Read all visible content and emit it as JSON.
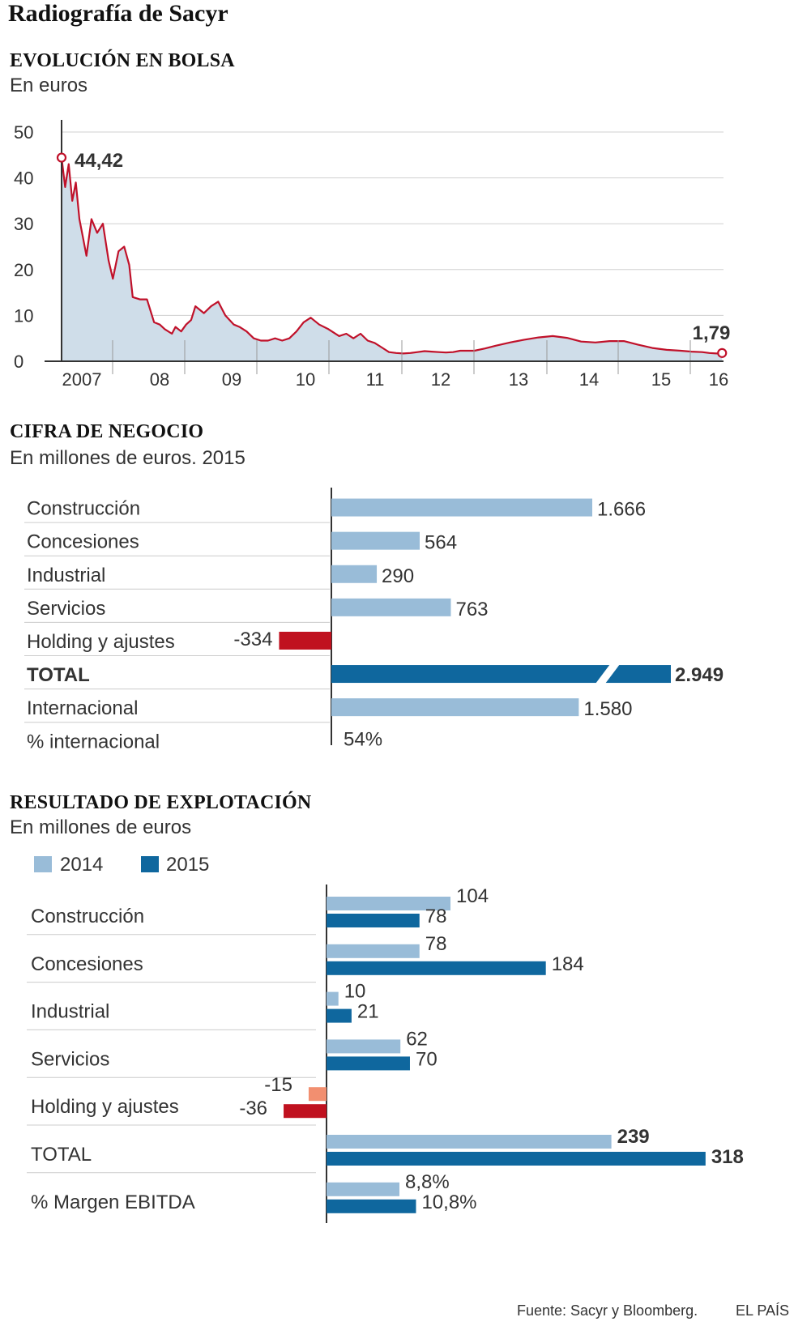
{
  "title": "Radiografía de Sacyr",
  "colors": {
    "area": "#cfdde9",
    "line": "#c0112a",
    "light": "#99bcd8",
    "dark": "#0f679e",
    "red": "#c0111f",
    "salmon": "#f28f70",
    "grid": "#d0d0d0"
  },
  "stock": {
    "title": "EVOLUCIÓN EN BOLSA",
    "subtitle": "En  euros",
    "y_ticks": [
      "50",
      "40",
      "30",
      "20",
      "10",
      "0"
    ],
    "x_ticks": [
      "2007",
      "08",
      "09",
      "10",
      "11",
      "12",
      "13",
      "14",
      "15",
      "16"
    ],
    "start_label": "44,42",
    "end_label": "1,79"
  },
  "revenue": {
    "title": "CIFRA DE NEGOCIO",
    "subtitle": "En millones de euros. 2015",
    "rows": [
      {
        "label": "Construcción",
        "value_text": "1.666"
      },
      {
        "label": "Concesiones",
        "value_text": "564"
      },
      {
        "label": "Industrial",
        "value_text": "290"
      },
      {
        "label": "Servicios",
        "value_text": "763"
      },
      {
        "label": "Holding y ajustes",
        "value_text": "-334"
      },
      {
        "label": "TOTAL",
        "value_text": "2.949"
      },
      {
        "label": "Internacional",
        "value_text": "1.580"
      },
      {
        "label": "% internacional",
        "value_text": "54%"
      }
    ]
  },
  "ebitda": {
    "title": "RESULTADO DE EXPLOTACIÓN",
    "subtitle": "En millones de euros",
    "legend": [
      "2014",
      "2015"
    ],
    "rows": [
      {
        "label": "Construcción",
        "v2014_text": "104",
        "v2015_text": "78"
      },
      {
        "label": "Concesiones",
        "v2014_text": "78",
        "v2015_text": "184"
      },
      {
        "label": "Industrial",
        "v2014_text": "10",
        "v2015_text": "21"
      },
      {
        "label": "Servicios",
        "v2014_text": "62",
        "v2015_text": "70"
      },
      {
        "label": "Holding y ajustes",
        "v2014_text": "-15",
        "v2015_text": "-36"
      },
      {
        "label": "TOTAL",
        "v2014_text": "239",
        "v2015_text": "318"
      },
      {
        "label": "% Margen EBITDA",
        "v2014_text": "8,8%",
        "v2015_text": "10,8%"
      }
    ]
  },
  "chart_data": [
    {
      "type": "area",
      "title": "EVOLUCIÓN EN BOLSA",
      "ylabel": "En euros",
      "ylim": [
        0,
        50
      ],
      "xlim": [
        2007.0,
        2016.3
      ],
      "x": [
        2007.0,
        2007.05,
        2007.1,
        2007.15,
        2007.2,
        2007.25,
        2007.3,
        2007.35,
        2007.42,
        2007.5,
        2007.58,
        2007.66,
        2007.72,
        2007.8,
        2007.88,
        2007.95,
        2008.0,
        2008.1,
        2008.2,
        2008.3,
        2008.38,
        2008.45,
        2008.55,
        2008.6,
        2008.68,
        2008.75,
        2008.82,
        2008.88,
        2009.0,
        2009.1,
        2009.2,
        2009.3,
        2009.42,
        2009.5,
        2009.6,
        2009.7,
        2009.8,
        2009.9,
        2010.0,
        2010.1,
        2010.2,
        2010.3,
        2010.4,
        2010.5,
        2010.62,
        2010.75,
        2010.9,
        2011.0,
        2011.1,
        2011.2,
        2011.3,
        2011.4,
        2011.5,
        2011.6,
        2011.7,
        2011.8,
        2011.9,
        2012.0,
        2012.1,
        2012.2,
        2012.3,
        2012.4,
        2012.5,
        2012.6,
        2012.8,
        2012.95,
        2013.1,
        2013.3,
        2013.5,
        2013.7,
        2013.9,
        2014.1,
        2014.3,
        2014.5,
        2014.7,
        2014.9,
        2015.1,
        2015.3,
        2015.5,
        2015.7,
        2015.85,
        2016.0,
        2016.1,
        2016.2,
        2016.28
      ],
      "values": [
        44.42,
        38,
        43,
        35,
        39,
        31,
        27,
        23,
        31,
        28,
        30,
        22,
        18,
        24,
        25,
        21,
        14,
        13.5,
        13.5,
        8.5,
        8,
        7,
        6,
        7.5,
        6.5,
        8,
        9,
        12,
        10.5,
        12,
        13,
        10,
        8,
        7.5,
        6.5,
        5,
        4.5,
        4.5,
        5,
        4.5,
        5,
        6.5,
        8.5,
        9.5,
        8,
        7,
        5.5,
        6,
        5,
        6,
        4.5,
        4,
        3,
        2,
        1.8,
        1.7,
        1.8,
        2,
        2.2,
        2.1,
        2,
        1.9,
        2,
        2.3,
        2.3,
        2.8,
        3.4,
        4.1,
        4.7,
        5.2,
        5.5,
        5.1,
        4.3,
        4.1,
        4.4,
        4.4,
        3.6,
        2.9,
        2.5,
        2.3,
        2.1,
        2.0,
        1.8,
        1.7,
        1.79
      ]
    },
    {
      "type": "bar",
      "title": "CIFRA DE NEGOCIO",
      "subtitle": "En millones de euros. 2015",
      "categories": [
        "Construcción",
        "Concesiones",
        "Industrial",
        "Servicios",
        "Holding y ajustes",
        "TOTAL",
        "Internacional",
        "% internacional"
      ],
      "values": [
        1666,
        564,
        290,
        763,
        -334,
        2949,
        1580,
        null
      ],
      "annotations": [
        "54%"
      ]
    },
    {
      "type": "bar",
      "title": "RESULTADO DE EXPLOTACIÓN",
      "subtitle": "En millones de euros",
      "categories": [
        "Construcción",
        "Concesiones",
        "Industrial",
        "Servicios",
        "Holding y ajustes",
        "TOTAL",
        "% Margen EBITDA"
      ],
      "series": [
        {
          "name": "2014",
          "values": [
            104,
            78,
            10,
            62,
            -15,
            239,
            8.8
          ]
        },
        {
          "name": "2015",
          "values": [
            78,
            184,
            21,
            70,
            -36,
            318,
            10.8
          ]
        }
      ]
    }
  ],
  "footer": {
    "source": "Fuente: Sacyr y Bloomberg.",
    "brand": "EL PAÍS"
  }
}
